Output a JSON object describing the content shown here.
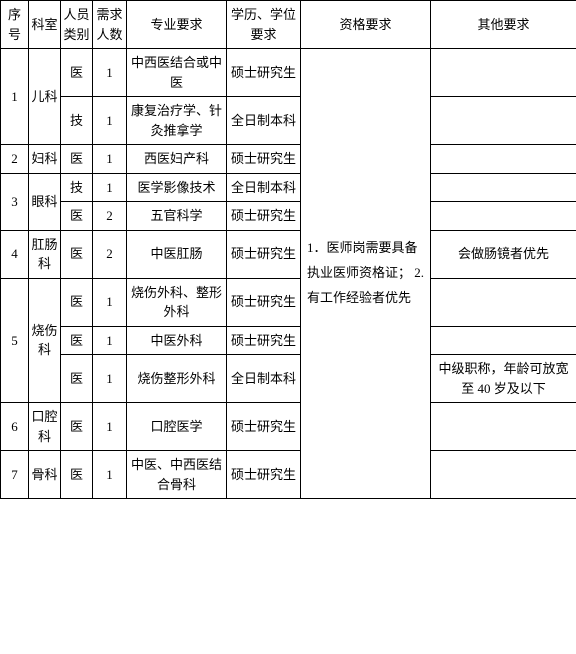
{
  "headers": {
    "seq": "序号",
    "dept": "科室",
    "type": "人员类别",
    "num": "需求人数",
    "major": "专业要求",
    "edu": "学历、学位要求",
    "qual": "资格要求",
    "other": "其他要求"
  },
  "qual_text": "1．医师岗需要具备执业医师资格证；\n2.有工作经验者优先",
  "rows": [
    {
      "seq": "1",
      "dept": "儿科",
      "type": "医",
      "num": "1",
      "major": "中西医结合或中医",
      "edu": "硕士研究生",
      "other": ""
    },
    {
      "seq": "",
      "dept": "",
      "type": "技",
      "num": "1",
      "major": "康复治疗学、针灸推拿学",
      "edu": "全日制本科",
      "other": ""
    },
    {
      "seq": "2",
      "dept": "妇科",
      "type": "医",
      "num": "1",
      "major": "西医妇产科",
      "edu": "硕士研究生",
      "other": ""
    },
    {
      "seq": "3",
      "dept": "眼科",
      "type": "技",
      "num": "1",
      "major": "医学影像技术",
      "edu": "全日制本科",
      "other": ""
    },
    {
      "seq": "",
      "dept": "",
      "type": "医",
      "num": "2",
      "major": "五官科学",
      "edu": "硕士研究生",
      "other": ""
    },
    {
      "seq": "4",
      "dept": "肛肠科",
      "type": "医",
      "num": "2",
      "major": "中医肛肠",
      "edu": "硕士研究生",
      "other": "会做肠镜者优先"
    },
    {
      "seq": "5",
      "dept": "烧伤科",
      "type": "医",
      "num": "1",
      "major": "烧伤外科、整形外科",
      "edu": "硕士研究生",
      "other": ""
    },
    {
      "seq": "",
      "dept": "",
      "type": "医",
      "num": "1",
      "major": "中医外科",
      "edu": "硕士研究生",
      "other": ""
    },
    {
      "seq": "",
      "dept": "",
      "type": "医",
      "num": "1",
      "major": "烧伤整形外科",
      "edu": "全日制本科",
      "other": "中级职称，年龄可放宽至 40 岁及以下"
    },
    {
      "seq": "6",
      "dept": "口腔科",
      "type": "医",
      "num": "1",
      "major": "口腔医学",
      "edu": "硕士研究生",
      "other": ""
    },
    {
      "seq": "7",
      "dept": "骨科",
      "type": "医",
      "num": "1",
      "major": "中医、中西医结合骨科",
      "edu": "硕士研究生",
      "other": ""
    }
  ],
  "style": {
    "font_family": "SimSun",
    "font_size_pt": 10,
    "border_color": "#000000",
    "background_color": "#ffffff",
    "text_color": "#000000"
  }
}
